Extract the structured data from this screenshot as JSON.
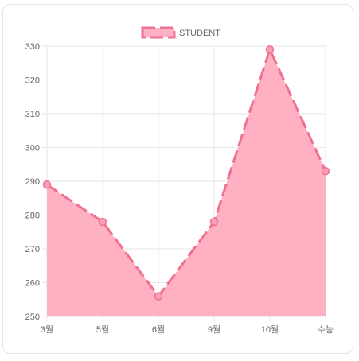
{
  "chart_data": {
    "type": "area",
    "categories": [
      "3월",
      "5월",
      "6월",
      "9월",
      "10월",
      "수능"
    ],
    "series": [
      {
        "name": "STUDENT",
        "values": [
          289,
          278,
          256,
          278,
          329,
          293
        ]
      }
    ],
    "ylim": [
      250,
      330
    ],
    "yticks": [
      250,
      260,
      270,
      280,
      290,
      300,
      310,
      320,
      330
    ],
    "grid": true,
    "legend_position": "top",
    "line_style": "dashed",
    "colors": {
      "line": "#f0708f",
      "fill": "#ffb0c3",
      "point_fill": "#f7a0b6",
      "grid": "#e6e6e6",
      "tick_text": "#666666",
      "card_border": "#e3e3e3"
    }
  }
}
